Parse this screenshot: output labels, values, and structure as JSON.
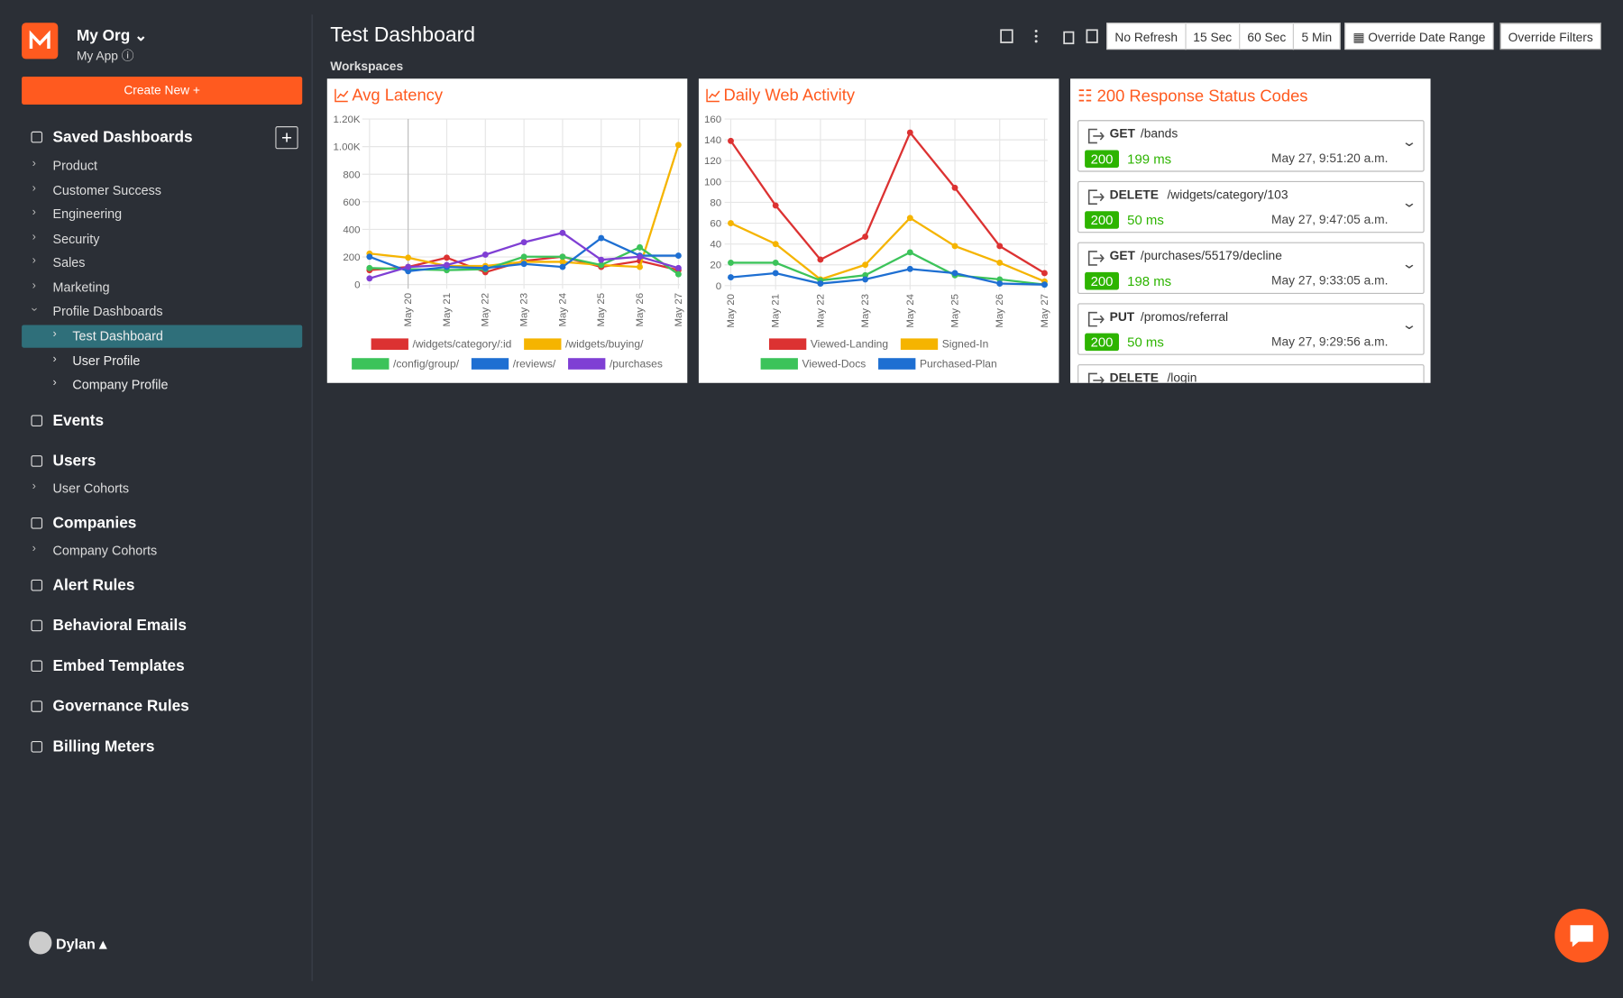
{
  "sidebar": {
    "org": "My Org",
    "app": "My App",
    "create_button": "Create New +",
    "saved_dashboards": {
      "title": "Saved Dashboards",
      "items": [
        "Product",
        "Customer Success",
        "Engineering",
        "Security",
        "Sales",
        "Marketing",
        "Profile Dashboards"
      ],
      "children": [
        "Test Dashboard",
        "User Profile",
        "Company Profile"
      ]
    },
    "nav": [
      {
        "label": "Events"
      },
      {
        "label": "Users",
        "children": [
          "User Cohorts"
        ]
      },
      {
        "label": "Companies",
        "children": [
          "Company Cohorts"
        ]
      },
      {
        "label": "Alert Rules"
      },
      {
        "label": "Behavioral Emails"
      },
      {
        "label": "Embed Templates"
      },
      {
        "label": "Governance Rules"
      },
      {
        "label": "Billing Meters"
      }
    ],
    "user": "Dylan"
  },
  "header": {
    "title": "Test Dashboard",
    "subtitle": "Workspaces",
    "refresh_buttons": [
      "No Refresh",
      "15 Sec",
      "60 Sec",
      "5 Min"
    ],
    "date_button": "Override Date Range",
    "filter_button": "Override Filters"
  },
  "chart_data": [
    {
      "type": "line",
      "title": "Avg Latency",
      "categories": [
        null,
        "May 20",
        "May 21",
        "May 22",
        "May 23",
        "May 24",
        "May 25",
        "May 26",
        "May 27"
      ],
      "series": [
        {
          "name": "/widgets/category/:id",
          "color": "#dc3232",
          "values": [
            105,
            128,
            195,
            90,
            172,
            202,
            128,
            172,
            105
          ]
        },
        {
          "name": "/widgets/buying/",
          "color": "#f5b400",
          "values": [
            225,
            195,
            135,
            135,
            165,
            165,
            142,
            128,
            1012
          ]
        },
        {
          "name": "/config/group/",
          "color": "#3cc35a",
          "values": [
            120,
            112,
            105,
            112,
            202,
            202,
            142,
            270,
            75
          ]
        },
        {
          "name": "/reviews/",
          "color": "#1e6fd2",
          "values": [
            202,
            97,
            128,
            120,
            150,
            128,
            337,
            210,
            210
          ]
        },
        {
          "name": "/purchases",
          "color": "#7f3fd4",
          "values": [
            45,
            128,
            142,
            217,
            307,
            375,
            180,
            202,
            120
          ]
        }
      ],
      "ylim": [
        0,
        1200
      ],
      "yticks": [
        0,
        200,
        400,
        600,
        800,
        {
          "value": 1000,
          "label": "1.00K"
        },
        {
          "value": 1200,
          "label": "1.20K"
        }
      ],
      "grid": true
    },
    {
      "type": "line",
      "title": "Daily Web Activity",
      "categories": [
        "May 20",
        "May 21",
        "May 22",
        "May 23",
        "May 24",
        "May 25",
        "May 26",
        "May 27"
      ],
      "series": [
        {
          "name": "Viewed-Landing",
          "color": "#dc3232",
          "values": [
            139,
            77,
            25,
            47,
            147,
            94,
            38,
            12
          ]
        },
        {
          "name": "Signed-In",
          "color": "#f5b400",
          "values": [
            60,
            40,
            6,
            20,
            65,
            38,
            22,
            4
          ]
        },
        {
          "name": "Viewed-Docs",
          "color": "#3cc35a",
          "values": [
            22,
            22,
            5,
            10,
            32,
            10,
            6,
            1
          ]
        },
        {
          "name": "Purchased-Plan",
          "color": "#1e6fd2",
          "values": [
            8,
            12,
            2,
            6,
            16,
            12,
            2,
            1
          ]
        }
      ],
      "ylim": [
        0,
        160
      ],
      "yticks": [
        0,
        20,
        40,
        60,
        80,
        100,
        120,
        140,
        160
      ],
      "grid": true
    }
  ],
  "responses": {
    "title": "200 Response Status Codes",
    "items": [
      {
        "method": "GET",
        "path": "/bands",
        "status": 200,
        "latency": "199 ms",
        "time": "May 27, 9:51:20 a.m."
      },
      {
        "method": "DELETE",
        "path": "/widgets/category/103",
        "status": 200,
        "latency": "50 ms",
        "time": "May 27, 9:47:05 a.m."
      },
      {
        "method": "GET",
        "path": "/purchases/55179/decline",
        "status": 200,
        "latency": "198 ms",
        "time": "May 27, 9:33:05 a.m."
      },
      {
        "method": "PUT",
        "path": "/promos/referral",
        "status": 200,
        "latency": "50 ms",
        "time": "May 27, 9:29:56 a.m."
      },
      {
        "method": "DELETE",
        "path": "/login"
      }
    ]
  }
}
